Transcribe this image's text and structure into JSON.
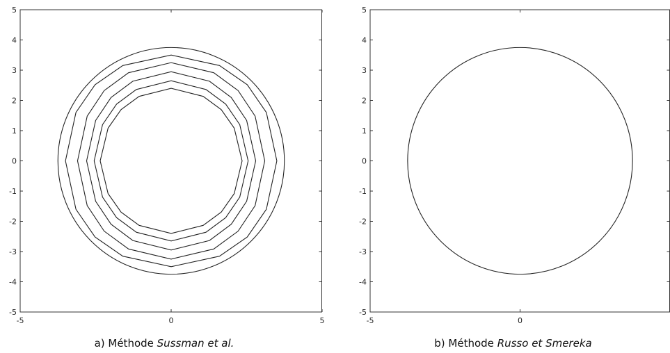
{
  "chart_data": [
    {
      "type": "line",
      "panel": "a",
      "caption_prefix": "a) Méthode ",
      "caption_italic": "Sussman et al.",
      "xlim": [
        -5,
        5
      ],
      "ylim": [
        -5,
        5
      ],
      "xticks": [
        -5,
        0,
        5
      ],
      "xtick_labels": [
        "-5",
        "0",
        "5"
      ],
      "yticks": [
        -5,
        -4,
        -3,
        -2,
        -1,
        0,
        1,
        2,
        3,
        4,
        5
      ],
      "ytick_labels": [
        "-5",
        "-4",
        "-3",
        "-2",
        "-1",
        "0",
        "1",
        "2",
        "3",
        "4",
        "5"
      ],
      "grid": false,
      "series": [
        {
          "shape": "circle",
          "radius": 3.75
        },
        {
          "shape": "octagon",
          "half_width": 3.5,
          "half_height": 3.5,
          "corner_cut": 0.2
        },
        {
          "shape": "octagon",
          "half_width": 3.1,
          "half_height": 3.25,
          "corner_cut": 0.22
        },
        {
          "shape": "octagon",
          "half_width": 2.8,
          "half_height": 2.95,
          "corner_cut": 0.24
        },
        {
          "shape": "octagon",
          "half_width": 2.55,
          "half_height": 2.65,
          "corner_cut": 0.25
        },
        {
          "shape": "octagon",
          "half_width": 2.35,
          "half_height": 2.4,
          "corner_cut": 0.26
        }
      ]
    },
    {
      "type": "line",
      "panel": "b",
      "caption_prefix": "b) Méthode ",
      "caption_italic": "Russo et Smereka",
      "xlim": [
        -5,
        5
      ],
      "ylim": [
        -5,
        5
      ],
      "xticks": [
        -5,
        0
      ],
      "xtick_labels": [
        "-5",
        "0"
      ],
      "yticks": [
        -5,
        -4,
        -3,
        -2,
        -1,
        0,
        1,
        2,
        3,
        4,
        5
      ],
      "ytick_labels": [
        "-5",
        "-4",
        "-3",
        "-2",
        "-1",
        "0",
        "1",
        "2",
        "3",
        "4",
        "5"
      ],
      "grid": false,
      "series": [
        {
          "shape": "circle",
          "radius": 3.75
        }
      ]
    }
  ]
}
